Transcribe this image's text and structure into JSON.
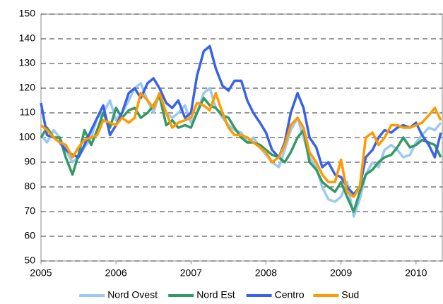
{
  "chart_data": {
    "type": "line",
    "x": [
      2005,
      2005.08,
      2005.17,
      2005.25,
      2005.33,
      2005.42,
      2005.5,
      2005.58,
      2005.67,
      2005.75,
      2005.83,
      2005.92,
      2006,
      2006.08,
      2006.17,
      2006.25,
      2006.33,
      2006.42,
      2006.5,
      2006.58,
      2006.67,
      2006.75,
      2006.83,
      2006.92,
      2007,
      2007.08,
      2007.17,
      2007.25,
      2007.33,
      2007.42,
      2007.5,
      2007.58,
      2007.67,
      2007.75,
      2007.83,
      2007.92,
      2008,
      2008.08,
      2008.17,
      2008.25,
      2008.33,
      2008.42,
      2008.5,
      2008.58,
      2008.67,
      2008.75,
      2008.83,
      2008.92,
      2009,
      2009.08,
      2009.17,
      2009.25,
      2009.33,
      2009.42,
      2009.5,
      2009.58,
      2009.67,
      2009.75,
      2009.83,
      2009.92,
      2010,
      2010.08,
      2010.17,
      2010.25,
      2010.33
    ],
    "series": [
      {
        "name": "Nord Ovest",
        "color": "#9dc8f0",
        "values": [
          101,
          98,
          103,
          100,
          95,
          90,
          92,
          96,
          100,
          108,
          110,
          115,
          107,
          110,
          115,
          120,
          122,
          115,
          110,
          118,
          110,
          108,
          110,
          113,
          106,
          110,
          118,
          120,
          112,
          108,
          105,
          103,
          102,
          98,
          100,
          96,
          93,
          90,
          88,
          95,
          103,
          108,
          100,
          92,
          88,
          80,
          75,
          74,
          76,
          82,
          68,
          75,
          85,
          90,
          88,
          95,
          97,
          95,
          92,
          93,
          98,
          101,
          104,
          103,
          106
        ]
      },
      {
        "name": "Nord Est",
        "color": "#339966",
        "values": [
          100,
          104,
          100,
          100,
          92,
          85,
          93,
          103,
          97,
          103,
          110,
          104,
          112,
          108,
          111,
          112,
          108,
          110,
          113,
          117,
          105,
          107,
          104,
          105,
          104,
          110,
          116,
          113,
          112,
          109,
          108,
          104,
          100,
          98,
          98,
          97,
          95,
          93,
          92,
          90,
          94,
          100,
          103,
          90,
          87,
          82,
          80,
          78,
          82,
          76,
          70,
          78,
          85,
          87,
          90,
          92,
          93,
          96,
          100,
          96,
          97,
          99,
          98,
          97,
          92
        ]
      },
      {
        "name": "Centro",
        "color": "#3a62e8",
        "values": [
          114,
          101,
          100,
          98,
          95,
          93,
          92,
          97,
          103,
          108,
          113,
          101,
          105,
          110,
          118,
          120,
          116,
          122,
          124,
          120,
          114,
          112,
          115,
          108,
          110,
          125,
          135,
          137,
          128,
          121,
          119,
          123,
          123,
          115,
          110,
          106,
          102,
          95,
          92,
          98,
          110,
          118,
          112,
          100,
          96,
          88,
          90,
          85,
          84,
          80,
          77,
          80,
          92,
          95,
          100,
          103,
          102,
          104,
          105,
          104,
          106,
          101,
          97,
          92,
          102
        ]
      },
      {
        "name": "Sud",
        "color": "#ff9a00",
        "values": [
          105,
          103,
          100,
          98,
          97,
          92,
          96,
          99,
          100,
          101,
          107,
          106,
          105,
          108,
          106,
          108,
          118,
          115,
          112,
          118,
          110,
          104,
          106,
          107,
          108,
          114,
          113,
          111,
          118,
          110,
          104,
          101,
          101,
          100,
          98,
          96,
          94,
          90,
          92,
          97,
          105,
          108,
          104,
          94,
          90,
          85,
          82,
          82,
          91,
          78,
          76,
          80,
          100,
          102,
          97,
          100,
          105,
          105,
          104,
          104,
          105,
          106,
          109,
          112,
          107
        ]
      }
    ],
    "xlim": [
      2005,
      2010.35
    ],
    "xticks": [
      2005,
      2006,
      2007,
      2008,
      2009,
      2010
    ],
    "ylim": [
      50,
      150
    ],
    "yticks": [
      50,
      60,
      70,
      80,
      90,
      100,
      110,
      120,
      130,
      140,
      150
    ],
    "grid": true,
    "legend": "bottom"
  }
}
